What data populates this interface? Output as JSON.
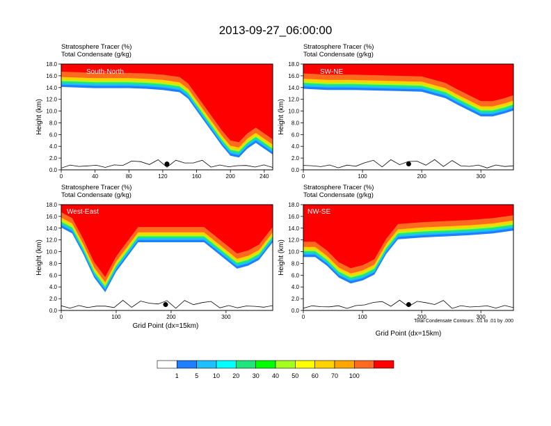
{
  "title": "2013-09-27_06:00:00",
  "colorbar": {
    "colors": [
      "#ffffff",
      "#1e7fff",
      "#1ebfff",
      "#00ffff",
      "#1ee67d",
      "#00ff00",
      "#a5ff1e",
      "#ffff00",
      "#ffd200",
      "#ffa500",
      "#ff6a1e",
      "#ff0000"
    ],
    "labels": [
      "1",
      "5",
      "10",
      "20",
      "30",
      "40",
      "50",
      "60",
      "70",
      "100"
    ]
  },
  "contour_note": "Total Condensate Contours: .01 to .01 by .000",
  "chart_data": [
    {
      "type": "contour",
      "name": "South-North",
      "title_lines": [
        "Stratosphere Tracer   (%)",
        "Total Condensate   (g/kg)"
      ],
      "ylabel": "Height (km)",
      "xlabel": "",
      "xlim": [
        0,
        250
      ],
      "ylim": [
        0,
        18
      ],
      "xticks": [
        "0",
        "40",
        "80",
        "120",
        "160",
        "200",
        "240"
      ],
      "xtick_values": [
        0,
        40,
        80,
        120,
        160,
        200,
        240
      ],
      "yticks": [
        "0.0",
        "2.0",
        "4.0",
        "6.0",
        "8.0",
        "10.0",
        "12.0",
        "14.0",
        "16.0",
        "18.0"
      ],
      "tropopause_x": [
        0,
        20,
        40,
        60,
        80,
        100,
        120,
        140,
        150,
        160,
        170,
        180,
        190,
        200,
        210,
        220,
        230,
        240,
        250
      ],
      "tropopause_km": [
        15.5,
        15.4,
        15.3,
        15.3,
        15.3,
        15.2,
        15.0,
        14.6,
        13.5,
        11.5,
        9.5,
        7.5,
        5.5,
        3.8,
        3.5,
        5.0,
        6.0,
        5.0,
        4.0
      ],
      "marker_x": 125
    },
    {
      "type": "contour",
      "name": "SW-NE",
      "title_lines": [
        "Stratosphere Tracer   (%)",
        "Total Condensate   (g/kg)"
      ],
      "ylabel": "Height (km)",
      "xlabel": "",
      "xlim": [
        0,
        355
      ],
      "ylim": [
        0,
        18
      ],
      "xticks": [
        "0",
        "100",
        "200",
        "300"
      ],
      "xtick_values": [
        0,
        100,
        200,
        300
      ],
      "yticks": [
        "0.0",
        "2.0",
        "4.0",
        "6.0",
        "8.0",
        "10.0",
        "12.0",
        "14.0",
        "16.0",
        "18.0"
      ],
      "tropopause_x": [
        0,
        40,
        80,
        120,
        160,
        200,
        240,
        260,
        280,
        300,
        320,
        340,
        355
      ],
      "tropopause_km": [
        15.2,
        15.0,
        15.0,
        14.9,
        14.8,
        14.7,
        13.6,
        12.5,
        11.5,
        10.5,
        10.5,
        11.0,
        11.5
      ],
      "marker_x": 178
    },
    {
      "type": "contour",
      "name": "West-East",
      "title_lines": [
        "Stratosphere Tracer   (%)",
        "Total Condensate   (g/kg)"
      ],
      "ylabel": "Height (km)",
      "xlabel": "Grid Point (dx=15km)",
      "xlim": [
        0,
        385
      ],
      "ylim": [
        0,
        18
      ],
      "xticks": [
        "0",
        "100",
        "200",
        "300"
      ],
      "xtick_values": [
        0,
        100,
        200,
        300
      ],
      "yticks": [
        "0.0",
        "2.0",
        "4.0",
        "6.0",
        "8.0",
        "10.0",
        "12.0",
        "14.0",
        "16.0",
        "18.0"
      ],
      "tropopause_x": [
        0,
        20,
        40,
        60,
        80,
        100,
        140,
        180,
        220,
        260,
        300,
        320,
        340,
        360,
        385
      ],
      "tropopause_km": [
        15.5,
        14.5,
        11.0,
        7.0,
        4.5,
        8.0,
        13.0,
        13.0,
        13.0,
        13.0,
        10.0,
        8.5,
        9.0,
        10.0,
        13.0
      ],
      "marker_x": 190
    },
    {
      "type": "contour",
      "name": "NW-SE",
      "title_lines": [
        "Stratosphere Tracer   (%)",
        "Total Condensate   (g/kg)"
      ],
      "ylabel": "Height (km)",
      "xlabel": "Grid Point (dx=15km)",
      "xlim": [
        0,
        355
      ],
      "ylim": [
        0,
        18
      ],
      "xticks": [
        "0",
        "100",
        "200",
        "300"
      ],
      "xtick_values": [
        0,
        100,
        200,
        300
      ],
      "yticks": [
        "0.0",
        "2.0",
        "4.0",
        "6.0",
        "8.0",
        "10.0",
        "12.0",
        "14.0",
        "16.0",
        "18.0"
      ],
      "tropopause_x": [
        0,
        20,
        40,
        60,
        80,
        100,
        120,
        140,
        160,
        200,
        240,
        280,
        320,
        355
      ],
      "tropopause_km": [
        10.5,
        10.5,
        9.0,
        7.0,
        6.0,
        6.5,
        7.5,
        11.0,
        13.5,
        13.8,
        14.0,
        14.2,
        14.5,
        15.0
      ],
      "marker_x": 178
    }
  ]
}
